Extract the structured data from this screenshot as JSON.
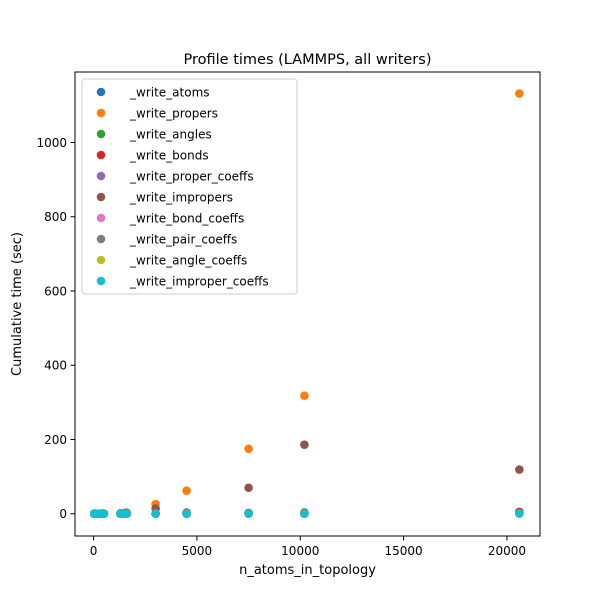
{
  "chart_data": {
    "type": "scatter",
    "title": "Profile times (LAMMPS, all writers)",
    "xlabel": "n_atoms_in_topology",
    "ylabel": "Cumulative time (sec)",
    "xlim": [
      -900,
      21600
    ],
    "ylim": [
      -60,
      1190
    ],
    "xticks": [
      0,
      5000,
      10000,
      15000,
      20000
    ],
    "yticks": [
      0,
      200,
      400,
      600,
      800,
      1000
    ],
    "grid": false,
    "legend_position": "top-left",
    "x": [
      30,
      60,
      120,
      300,
      400,
      450,
      500,
      1300,
      1500,
      1600,
      3000,
      4500,
      7500,
      10200,
      20600
    ],
    "series": [
      {
        "name": "_write_atoms",
        "color": "#1f77b4",
        "values": [
          0.01,
          0.01,
          0.02,
          0.03,
          0.04,
          0.04,
          0.05,
          0.12,
          0.15,
          0.16,
          0.3,
          0.45,
          0.8,
          1.1,
          2.3
        ]
      },
      {
        "name": "_write_propers",
        "color": "#ff7f0e",
        "values": [
          0.01,
          0.02,
          0.05,
          0.1,
          0.15,
          0.2,
          0.3,
          1.5,
          2.5,
          3.0,
          26,
          62,
          175,
          318,
          1132
        ]
      },
      {
        "name": "_write_angles",
        "color": "#2ca02c",
        "values": [
          0.01,
          0.01,
          0.02,
          0.03,
          0.04,
          0.05,
          0.06,
          0.15,
          0.2,
          0.25,
          0.6,
          1.2,
          2.0,
          3.0,
          5.0
        ]
      },
      {
        "name": "_write_bonds",
        "color": "#d62728",
        "values": [
          0.01,
          0.01,
          0.02,
          0.03,
          0.04,
          0.05,
          0.06,
          0.15,
          0.2,
          0.25,
          0.5,
          1.0,
          1.8,
          2.6,
          4.5
        ]
      },
      {
        "name": "_write_proper_coeffs",
        "color": "#9467bd",
        "values": [
          0.01,
          0.01,
          0.01,
          0.02,
          0.02,
          0.02,
          0.03,
          0.05,
          0.06,
          0.07,
          0.1,
          0.2,
          0.3,
          0.4,
          0.8
        ]
      },
      {
        "name": "_write_impropers",
        "color": "#8c564b",
        "values": [
          0.01,
          0.02,
          0.04,
          0.08,
          0.12,
          0.15,
          0.2,
          1.0,
          1.5,
          2.0,
          14,
          3.0,
          70,
          186,
          119
        ]
      },
      {
        "name": "_write_bond_coeffs",
        "color": "#e377c2",
        "values": [
          0.01,
          0.01,
          0.01,
          0.02,
          0.02,
          0.02,
          0.03,
          0.05,
          0.06,
          0.07,
          0.1,
          0.2,
          0.3,
          0.4,
          0.8
        ]
      },
      {
        "name": "_write_pair_coeffs",
        "color": "#7f7f7f",
        "values": [
          0.01,
          0.01,
          0.01,
          0.02,
          0.02,
          0.02,
          0.03,
          0.05,
          0.06,
          0.07,
          0.1,
          0.2,
          0.3,
          0.4,
          0.8
        ]
      },
      {
        "name": "_write_angle_coeffs",
        "color": "#bcbd22",
        "values": [
          0.01,
          0.01,
          0.01,
          0.02,
          0.02,
          0.02,
          0.03,
          0.05,
          0.06,
          0.07,
          0.1,
          0.2,
          0.3,
          0.4,
          0.8
        ]
      },
      {
        "name": "_write_improper_coeffs",
        "color": "#17becf",
        "values": [
          0.01,
          0.01,
          0.01,
          0.02,
          0.02,
          0.02,
          0.03,
          0.05,
          0.06,
          0.07,
          0.1,
          0.2,
          0.3,
          0.4,
          0.8
        ]
      }
    ]
  }
}
